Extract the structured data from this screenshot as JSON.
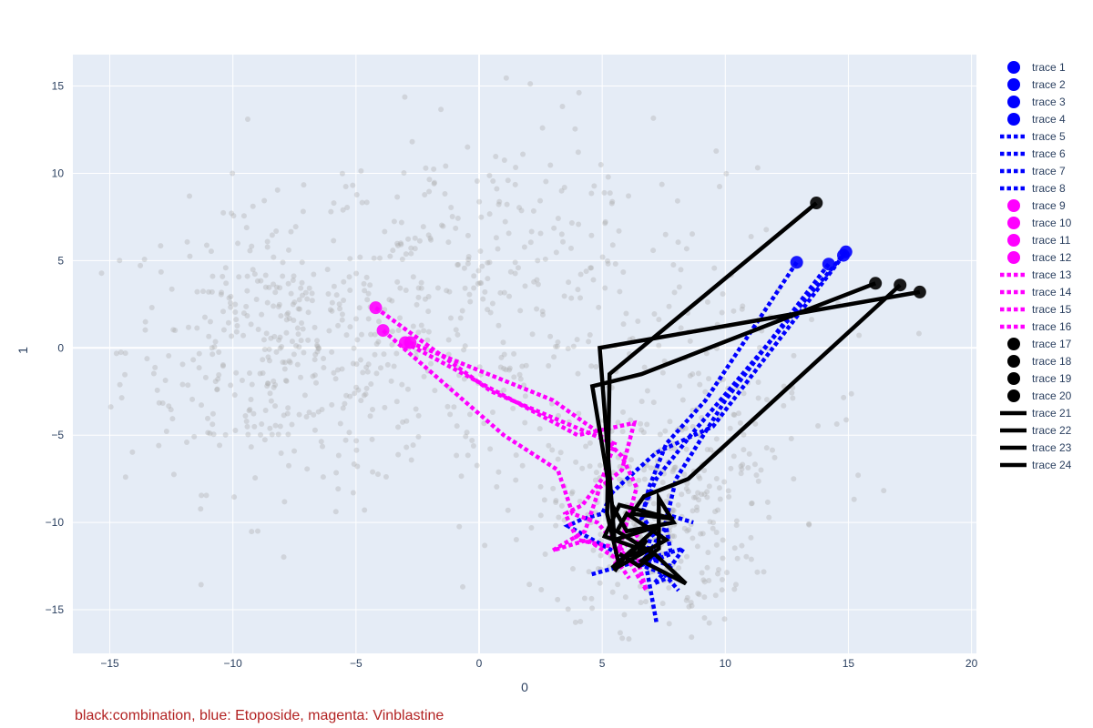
{
  "chart_data": {
    "type": "scatter",
    "xlabel": "0",
    "ylabel": "1",
    "xlim": [
      -16.5,
      20.2
    ],
    "ylim": [
      -17.5,
      16.8
    ],
    "x_ticks": [
      -15,
      -10,
      -5,
      0,
      5,
      10,
      15,
      20
    ],
    "y_ticks": [
      -15,
      -10,
      -5,
      0,
      5,
      10,
      15
    ],
    "x_tick_labels": [
      "−15",
      "−10",
      "−5",
      "0",
      "5",
      "10",
      "15",
      "20"
    ],
    "y_tick_labels": [
      "−15",
      "−10",
      "−5",
      "0",
      "5",
      "10",
      "15"
    ],
    "grid": true,
    "legend_position": "right",
    "colors": {
      "blue": "#0000ff",
      "magenta": "#ff00ff",
      "black": "#000000",
      "background": "#e5ecf6",
      "grid": "#ffffff",
      "cloud": "#a9a9a9"
    },
    "background_points": {
      "color": "#a9a9a9",
      "clusters": [
        {
          "cx": -8,
          "cy": 0,
          "sx": 3.2,
          "sy": 4,
          "n": 400
        },
        {
          "cx": 0,
          "cy": 2,
          "sx": 3.5,
          "sy": 5.5,
          "n": 260
        },
        {
          "cx": 7,
          "cy": -10,
          "sx": 2,
          "sy": 3,
          "n": 300
        },
        {
          "cx": 10,
          "cy": -4,
          "sx": 3,
          "sy": 4,
          "n": 120
        },
        {
          "cx": 5,
          "cy": 5,
          "sx": 4,
          "sy": 4,
          "n": 80
        }
      ]
    },
    "series": [
      {
        "name": "trace 1",
        "group": "blue",
        "mode": "markers",
        "x": [
          14.9
        ],
        "y": [
          5.5
        ]
      },
      {
        "name": "trace 2",
        "group": "blue",
        "mode": "markers",
        "x": [
          12.9
        ],
        "y": [
          4.9
        ]
      },
      {
        "name": "trace 3",
        "group": "blue",
        "mode": "markers",
        "x": [
          14.2
        ],
        "y": [
          4.8
        ]
      },
      {
        "name": "trace 4",
        "group": "blue",
        "mode": "markers",
        "x": [
          14.8
        ],
        "y": [
          5.3
        ]
      },
      {
        "name": "trace 5",
        "group": "blue",
        "mode": "dot-line",
        "x": [
          14.9,
          9.5,
          8.6,
          7.2,
          6.6,
          7.0,
          6.8,
          7.8,
          8.3,
          4.5
        ],
        "y": [
          5.5,
          -3.5,
          -5.0,
          -7.5,
          -9.5,
          -10.5,
          -12.0,
          -12.5,
          -11.5,
          -13.0
        ]
      },
      {
        "name": "trace 6",
        "group": "blue",
        "mode": "dot-line",
        "x": [
          12.9,
          9.2,
          7.6,
          6.9,
          6.6,
          7.2,
          6.8,
          7.2
        ],
        "y": [
          4.9,
          -3.0,
          -5.5,
          -8.0,
          -9.8,
          -11.0,
          -12.6,
          -15.7
        ]
      },
      {
        "name": "trace 7",
        "group": "blue",
        "mode": "dot-line",
        "x": [
          14.2,
          10.0,
          8.0,
          7.5,
          6.5,
          7.8,
          7.5,
          8.7
        ],
        "y": [
          4.8,
          -3.0,
          -7.5,
          -10.5,
          -12.5,
          -11.8,
          -9.5,
          -10.0
        ]
      },
      {
        "name": "trace 8",
        "group": "blue",
        "mode": "dot-line",
        "x": [
          14.8,
          9.5,
          7.2,
          6.0,
          5.4,
          5.0,
          4.2,
          3.6,
          6.3,
          7.8,
          7.1,
          7.5,
          8.1
        ],
        "y": [
          5.3,
          -4.5,
          -6.0,
          -7.5,
          -8.3,
          -9.5,
          -9.8,
          -10.2,
          -12.3,
          -13.1,
          -13.5,
          -12.9,
          -13.9
        ]
      },
      {
        "name": "trace 9",
        "group": "magenta",
        "mode": "markers",
        "x": [
          -3.9
        ],
        "y": [
          1.0
        ]
      },
      {
        "name": "trace 10",
        "group": "magenta",
        "mode": "markers",
        "x": [
          -3.0
        ],
        "y": [
          0.3
        ]
      },
      {
        "name": "trace 11",
        "group": "magenta",
        "mode": "markers",
        "x": [
          -4.2
        ],
        "y": [
          2.3
        ]
      },
      {
        "name": "trace 12",
        "group": "magenta",
        "mode": "markers",
        "x": [
          -2.8
        ],
        "y": [
          0.3
        ]
      },
      {
        "name": "trace 13",
        "group": "magenta",
        "mode": "dot-line",
        "x": [
          -3.9,
          1.0,
          3.2,
          3.8,
          4.8,
          6.0,
          6.8,
          6.5,
          6.4
        ],
        "y": [
          1.0,
          -5.0,
          -7.0,
          -9.5,
          -10.0,
          -12.0,
          -13.9,
          -12.5,
          -11.0
        ]
      },
      {
        "name": "trace 14",
        "group": "magenta",
        "mode": "dot-line",
        "x": [
          -3.0,
          4.0,
          6.3,
          5.8,
          4.9,
          4.3,
          3.0,
          4.4,
          5.5,
          6.1
        ],
        "y": [
          0.3,
          -5.0,
          -4.3,
          -7.0,
          -8.0,
          -10.5,
          -11.6,
          -11.0,
          -12.0,
          -13.2
        ]
      },
      {
        "name": "trace 15",
        "group": "magenta",
        "mode": "dot-line",
        "x": [
          -4.2,
          0.5,
          5.5,
          5.0,
          4.2,
          3.5,
          4.0,
          5.8,
          6.6
        ],
        "y": [
          2.3,
          -2.5,
          -5.5,
          -7.5,
          -9.0,
          -9.5,
          -11.0,
          -11.5,
          -10.5
        ]
      },
      {
        "name": "trace 16",
        "group": "magenta",
        "mode": "dot-line",
        "x": [
          -2.8,
          3.0,
          4.7,
          5.8,
          6.4,
          6.0,
          5.5
        ],
        "y": [
          0.3,
          -3.0,
          -4.7,
          -6.2,
          -8.0,
          -10.0,
          -12.5
        ]
      },
      {
        "name": "trace 17",
        "group": "black",
        "mode": "markers",
        "x": [
          13.7
        ],
        "y": [
          8.3
        ]
      },
      {
        "name": "trace 18",
        "group": "black",
        "mode": "markers",
        "x": [
          17.9
        ],
        "y": [
          3.2
        ]
      },
      {
        "name": "trace 19",
        "group": "black",
        "mode": "markers",
        "x": [
          16.1
        ],
        "y": [
          3.7
        ]
      },
      {
        "name": "trace 20",
        "group": "black",
        "mode": "markers",
        "x": [
          17.1
        ],
        "y": [
          3.6
        ]
      },
      {
        "name": "trace 21",
        "group": "black",
        "mode": "line",
        "x": [
          13.7,
          5.3,
          5.2,
          5.7,
          7.6,
          6.0,
          5.6,
          7.1,
          6.5,
          5.7
        ],
        "y": [
          8.3,
          -1.5,
          -9.5,
          -12.5,
          -11.0,
          -9.5,
          -10.5,
          -11.8,
          -12.5,
          -11.8
        ]
      },
      {
        "name": "trace 22",
        "group": "black",
        "mode": "line",
        "x": [
          17.9,
          4.9,
          5.2,
          5.5,
          7.3,
          5.4,
          6.8,
          6.3
        ],
        "y": [
          3.2,
          0.0,
          -5.5,
          -11.0,
          -10.2,
          -12.6,
          -11.0,
          -12.1
        ]
      },
      {
        "name": "trace 23",
        "group": "black",
        "mode": "line",
        "x": [
          16.1,
          6.6,
          4.6,
          5.4,
          6.0,
          7.9,
          7.3,
          7.3,
          6.6,
          8.4,
          6.9,
          5.9,
          5.5
        ],
        "y": [
          3.7,
          -1.5,
          -2.2,
          -9.0,
          -10.5,
          -10.0,
          -8.6,
          -11.5,
          -12.2,
          -13.5,
          -11.5,
          -12.0,
          -12.8
        ]
      },
      {
        "name": "trace 24",
        "group": "black",
        "mode": "line",
        "x": [
          17.1,
          8.5,
          6.7,
          6.2,
          7.9,
          5.7,
          5.1,
          6.5
        ],
        "y": [
          3.6,
          -7.5,
          -8.5,
          -9.5,
          -9.8,
          -9.0,
          -10.8,
          -11.5
        ]
      }
    ]
  },
  "caption": "black:combination, blue: Etoposide, magenta: Vinblastine"
}
